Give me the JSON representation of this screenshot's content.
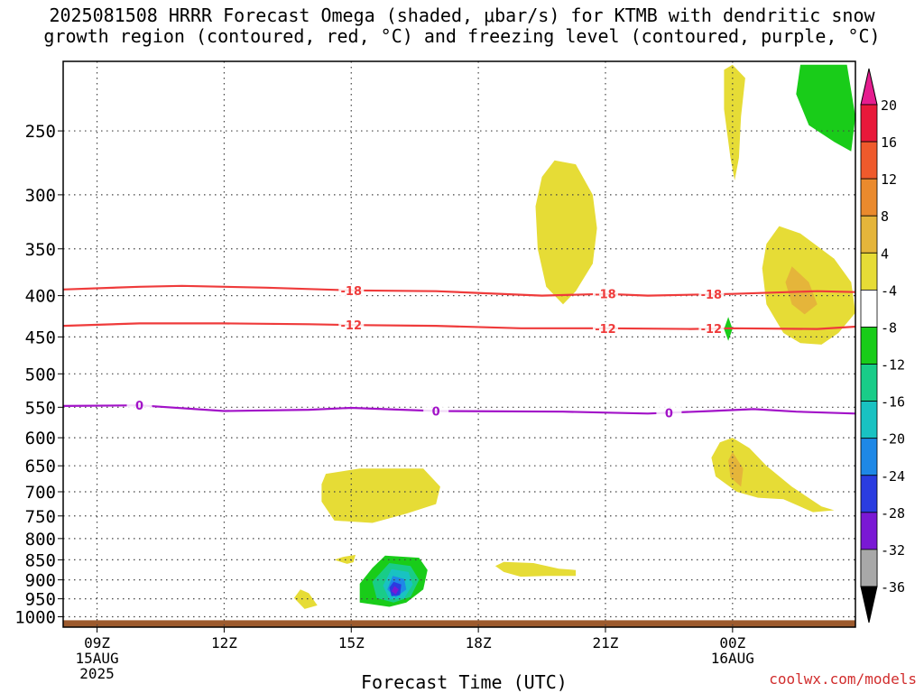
{
  "title_line1": "2025081508 HRRR Forecast Omega (shaded, μbar/s) for KTMB with dendritic snow",
  "title_line2": "growth region (contoured, red, °C) and freezing level (contoured, purple, °C)",
  "watermark": "coolwx.com/models",
  "chart_data": {
    "type": "contour",
    "title": "2025081508 HRRR Forecast Omega (shaded, μbar/s) for KTMB with dendritic snow growth region (contoured, red, °C) and freezing level (contoured, purple, °C)",
    "xlabel": "Forecast Time (UTC)",
    "ylabel": "",
    "x_range_hours_utc": [
      8.2,
      26.9
    ],
    "y_scale": "log",
    "ylim": [
      1030,
      205
    ],
    "y_ticks": [
      250,
      300,
      350,
      400,
      450,
      500,
      550,
      600,
      650,
      700,
      750,
      800,
      850,
      900,
      950,
      1000
    ],
    "x_ticks": [
      {
        "hour": 9,
        "lines": [
          "09Z",
          "15AUG",
          "2025"
        ]
      },
      {
        "hour": 12,
        "lines": [
          "12Z"
        ]
      },
      {
        "hour": 15,
        "lines": [
          "15Z"
        ]
      },
      {
        "hour": 18,
        "lines": [
          "18Z"
        ]
      },
      {
        "hour": 21,
        "lines": [
          "21Z"
        ]
      },
      {
        "hour": 24,
        "lines": [
          "00Z",
          "16AUG"
        ]
      }
    ],
    "grid": true,
    "colorbar": {
      "levels": [
        20,
        16,
        12,
        8,
        4,
        -4,
        -8,
        -12,
        -16,
        -20,
        -24,
        -28,
        -32,
        -36
      ],
      "colors": [
        "#e8193a",
        "#ef5a2c",
        "#ea8a2d",
        "#e5b53a",
        "#e6dc36",
        "#ffffff",
        "#19cc19",
        "#19cc88",
        "#19c2c2",
        "#1e88e6",
        "#2a3ce0",
        "#7a18d4",
        "#a818c8",
        "#a8a8a8"
      ],
      "top_color": "#e51d8f",
      "bottom_color": "#000000"
    },
    "freezing_level": {
      "color": "#a212c8",
      "label": "0",
      "points": [
        [
          8.2,
          548
        ],
        [
          10,
          547
        ],
        [
          12,
          556
        ],
        [
          14,
          554
        ],
        [
          15,
          551
        ],
        [
          17,
          556
        ],
        [
          20,
          557
        ],
        [
          22,
          560
        ],
        [
          23.5,
          556
        ],
        [
          24.5,
          553
        ],
        [
          25.5,
          557
        ],
        [
          26.9,
          560
        ]
      ]
    },
    "dgz_contours": [
      {
        "label": "-18",
        "color": "#ef3b3b",
        "points": [
          [
            8.2,
            393
          ],
          [
            10,
            390
          ],
          [
            11,
            389
          ],
          [
            13,
            391
          ],
          [
            15,
            394
          ],
          [
            17,
            395
          ],
          [
            19.5,
            400
          ],
          [
            21,
            398
          ],
          [
            22,
            400
          ],
          [
            24,
            398
          ],
          [
            26,
            395
          ],
          [
            26.9,
            396
          ]
        ]
      },
      {
        "label": "-12",
        "color": "#ef3b3b",
        "points": [
          [
            8.2,
            436
          ],
          [
            10,
            433
          ],
          [
            12,
            433
          ],
          [
            14,
            434
          ],
          [
            15,
            435
          ],
          [
            17,
            436
          ],
          [
            19,
            439
          ],
          [
            21,
            439
          ],
          [
            23,
            440
          ],
          [
            24,
            439
          ],
          [
            26,
            440
          ],
          [
            26.9,
            437
          ]
        ]
      }
    ],
    "omega_regions": [
      {
        "value": 4,
        "points": [
          [
            24,
            207
          ],
          [
            24.3,
            215
          ],
          [
            24.2,
            240
          ],
          [
            24.15,
            270
          ],
          [
            24.05,
            288
          ],
          [
            23.95,
            270
          ],
          [
            23.8,
            235
          ],
          [
            23.8,
            210
          ]
        ]
      },
      {
        "value": 4,
        "points": [
          [
            19.8,
            272
          ],
          [
            20.3,
            275
          ],
          [
            20.7,
            300
          ],
          [
            20.8,
            330
          ],
          [
            20.7,
            365
          ],
          [
            20.3,
            395
          ],
          [
            20,
            410
          ],
          [
            19.6,
            390
          ],
          [
            19.4,
            350
          ],
          [
            19.35,
            310
          ],
          [
            19.5,
            285
          ]
        ]
      },
      {
        "value": 4,
        "points": [
          [
            25.1,
            328
          ],
          [
            25.6,
            335
          ],
          [
            26.4,
            360
          ],
          [
            26.8,
            385
          ],
          [
            26.9,
            420
          ],
          [
            26.5,
            445
          ],
          [
            26.1,
            460
          ],
          [
            25.6,
            458
          ],
          [
            25.2,
            445
          ],
          [
            24.8,
            410
          ],
          [
            24.7,
            370
          ],
          [
            24.8,
            345
          ]
        ]
      },
      {
        "value": 8,
        "points": [
          [
            25.4,
            368
          ],
          [
            25.8,
            385
          ],
          [
            26,
            410
          ],
          [
            25.7,
            422
          ],
          [
            25.4,
            410
          ],
          [
            25.25,
            385
          ]
        ]
      },
      {
        "value": 4,
        "points": [
          [
            24,
            600
          ],
          [
            24.4,
            618
          ],
          [
            24.8,
            650
          ],
          [
            25.4,
            690
          ],
          [
            26.1,
            730
          ],
          [
            26.4,
            738
          ],
          [
            25.9,
            742
          ],
          [
            25.2,
            715
          ],
          [
            24.6,
            712
          ],
          [
            24.1,
            700
          ],
          [
            23.6,
            670
          ],
          [
            23.5,
            635
          ],
          [
            23.7,
            608
          ]
        ]
      },
      {
        "value": 8,
        "points": [
          [
            24,
            625
          ],
          [
            24.25,
            655
          ],
          [
            24.2,
            690
          ],
          [
            23.95,
            672
          ],
          [
            23.9,
            640
          ]
        ]
      },
      {
        "value": 4,
        "points": [
          [
            14.4,
            665
          ],
          [
            15.2,
            655
          ],
          [
            16.7,
            655
          ],
          [
            17.1,
            690
          ],
          [
            17,
            725
          ],
          [
            16.3,
            745
          ],
          [
            15.5,
            765
          ],
          [
            14.6,
            760
          ],
          [
            14.3,
            720
          ],
          [
            14.3,
            685
          ]
        ]
      },
      {
        "value": 4,
        "points": [
          [
            18.6,
            855
          ],
          [
            19.3,
            858
          ],
          [
            19.9,
            872
          ],
          [
            20.3,
            875
          ],
          [
            20.3,
            890
          ],
          [
            19.6,
            890
          ],
          [
            19,
            892
          ],
          [
            18.6,
            880
          ],
          [
            18.4,
            865
          ]
        ]
      },
      {
        "value": 4,
        "points": [
          [
            14.8,
            843
          ],
          [
            15.1,
            838
          ],
          [
            15.05,
            856
          ],
          [
            14.9,
            860
          ],
          [
            14.6,
            850
          ]
        ]
      },
      {
        "value": 4,
        "points": [
          [
            13.8,
            925
          ],
          [
            14,
            935
          ],
          [
            14.2,
            968
          ],
          [
            13.9,
            978
          ],
          [
            13.65,
            948
          ]
        ]
      },
      {
        "value": -4,
        "points": [
          [
            25.6,
            207
          ],
          [
            26.9,
            207
          ],
          [
            26.9,
            288
          ],
          [
            26.6,
            295
          ],
          [
            26,
            272
          ],
          [
            25.3,
            250
          ],
          [
            25,
            230
          ],
          [
            24.7,
            207
          ]
        ]
      },
      {
        "value": -8,
        "points": [
          [
            25.6,
            207
          ],
          [
            26.7,
            207
          ],
          [
            26.9,
            240
          ],
          [
            26.8,
            265
          ],
          [
            26.4,
            258
          ],
          [
            25.8,
            246
          ],
          [
            25.5,
            225
          ]
        ]
      },
      {
        "value": -4,
        "points": [
          [
            23.2,
            355
          ],
          [
            23.9,
            355
          ],
          [
            24,
            385
          ],
          [
            24.3,
            420
          ],
          [
            24.4,
            470
          ],
          [
            24.2,
            495
          ],
          [
            23.8,
            490
          ],
          [
            23.4,
            470
          ],
          [
            23.3,
            430
          ],
          [
            23.25,
            395
          ]
        ]
      },
      {
        "value": -8,
        "points": [
          [
            23.9,
            425
          ],
          [
            24,
            440
          ],
          [
            23.9,
            455
          ],
          [
            23.8,
            440
          ]
        ]
      },
      {
        "value": -4,
        "points": [
          [
            17.7,
            405
          ],
          [
            18.1,
            398
          ],
          [
            18.3,
            425
          ],
          [
            18.2,
            455
          ],
          [
            17.9,
            480
          ],
          [
            17.6,
            462
          ],
          [
            17.5,
            425
          ]
        ]
      },
      {
        "value": -4,
        "points": [
          [
            14.8,
            478
          ],
          [
            15.2,
            475
          ],
          [
            15.4,
            500
          ],
          [
            15.2,
            542
          ],
          [
            14.9,
            550
          ],
          [
            14.7,
            520
          ]
        ]
      },
      {
        "value": -4,
        "points": [
          [
            25.8,
            528
          ],
          [
            26.2,
            538
          ],
          [
            26.9,
            590
          ],
          [
            26.5,
            605
          ],
          [
            26.1,
            598
          ],
          [
            25.8,
            565
          ]
        ]
      },
      {
        "value": -4,
        "points": [
          [
            11.8,
            812
          ],
          [
            12.3,
            820
          ],
          [
            11.9,
            862
          ],
          [
            11.4,
            838
          ]
        ]
      },
      {
        "value": -4,
        "points": [
          [
            13,
            940
          ],
          [
            13.2,
            945
          ],
          [
            13,
            952
          ]
        ]
      },
      {
        "value": -4,
        "points": [
          [
            23,
            770
          ],
          [
            24,
            790
          ],
          [
            24.9,
            815
          ],
          [
            25.3,
            850
          ],
          [
            24.9,
            885
          ],
          [
            24.3,
            878
          ],
          [
            23.6,
            872
          ],
          [
            22.9,
            860
          ],
          [
            22.5,
            825
          ],
          [
            22.8,
            790
          ]
        ]
      },
      {
        "value": -4,
        "points": [
          [
            17.7,
            940
          ],
          [
            18.1,
            943
          ],
          [
            18.2,
            958
          ],
          [
            17.9,
            970
          ],
          [
            17.6,
            958
          ]
        ]
      },
      {
        "value": -4,
        "points": [
          [
            15.9,
            832
          ],
          [
            16.8,
            834
          ],
          [
            17,
            860
          ],
          [
            17,
            905
          ],
          [
            16.7,
            955
          ],
          [
            16.1,
            975
          ],
          [
            15.3,
            975
          ],
          [
            14.8,
            950
          ],
          [
            14.9,
            905
          ],
          [
            15.3,
            862
          ]
        ]
      },
      {
        "value": -8,
        "points": [
          [
            15.8,
            840
          ],
          [
            16.6,
            845
          ],
          [
            16.8,
            875
          ],
          [
            16.7,
            925
          ],
          [
            16.3,
            960
          ],
          [
            15.9,
            972
          ],
          [
            15.2,
            960
          ],
          [
            15.2,
            910
          ],
          [
            15.5,
            870
          ]
        ]
      },
      {
        "value": -12,
        "points": [
          [
            15.9,
            858
          ],
          [
            16.4,
            865
          ],
          [
            16.6,
            900
          ],
          [
            16.4,
            945
          ],
          [
            16,
            960
          ],
          [
            15.6,
            948
          ],
          [
            15.5,
            905
          ]
        ]
      },
      {
        "value": -16,
        "points": [
          [
            15.95,
            873
          ],
          [
            16.35,
            880
          ],
          [
            16.45,
            912
          ],
          [
            16.25,
            948
          ],
          [
            15.9,
            952
          ],
          [
            15.75,
            915
          ]
        ]
      },
      {
        "value": -20,
        "points": [
          [
            15.98,
            890
          ],
          [
            16.25,
            898
          ],
          [
            16.3,
            925
          ],
          [
            16.05,
            946
          ],
          [
            15.85,
            925
          ]
        ]
      },
      {
        "value": -24,
        "points": [
          [
            16,
            905
          ],
          [
            16.18,
            912
          ],
          [
            16.15,
            940
          ],
          [
            15.95,
            943
          ],
          [
            15.9,
            920
          ]
        ]
      },
      {
        "value": -28,
        "points": [
          [
            16.02,
            916
          ],
          [
            16.12,
            925
          ],
          [
            16.05,
            938
          ],
          [
            15.95,
            930
          ]
        ]
      }
    ],
    "terrain": {
      "color": "#9c5a2d",
      "top_pressure": 1010
    }
  }
}
